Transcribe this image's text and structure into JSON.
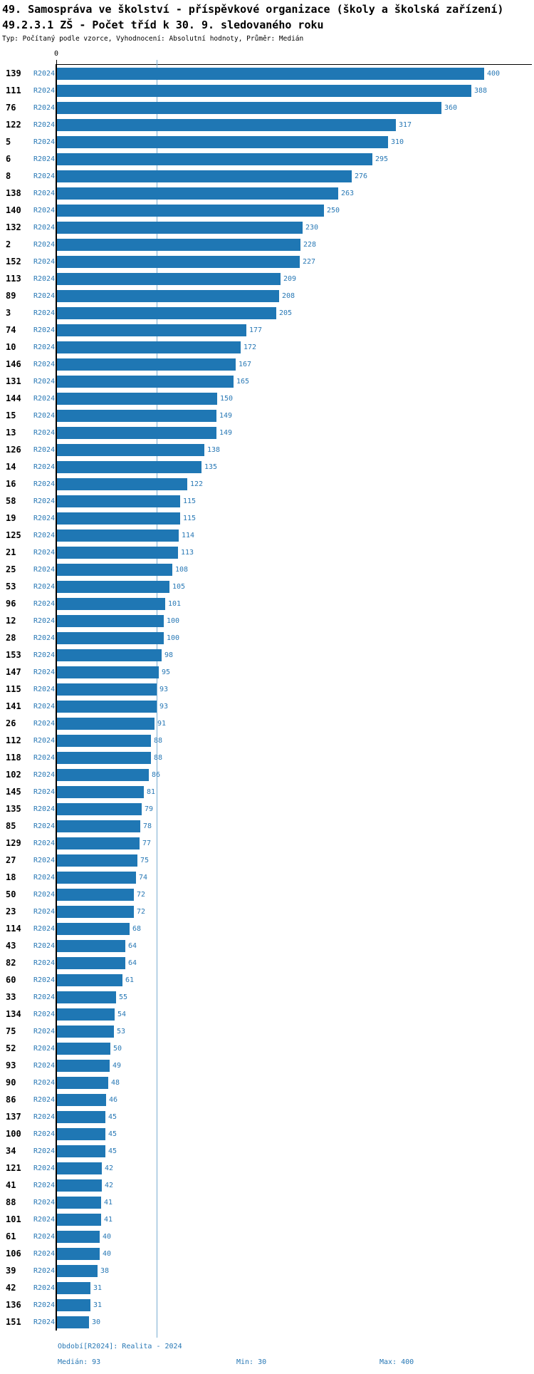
{
  "header": {
    "title_line1": "49. Samospráva ve školství - příspěvkové organizace (školy a školská zařízení)",
    "title_line2": "49.2.3.1 ZŠ - Počet tříd k 30. 9. sledovaného roku",
    "subtitle": "Typ: Počítaný podle vzorce, Vyhodnocení: Absolutní hodnoty, Průměr: Medián"
  },
  "chart_data": {
    "type": "bar",
    "orientation": "horizontal",
    "title": "49.2.3.1 ZŠ - Počet tříd k 30. 9. sledovaného roku",
    "series_label": "R2024",
    "x_axis": {
      "origin_label": "0",
      "min": 0,
      "max_value": 400,
      "gridlines": false
    },
    "median_line_value": 93,
    "bar_color": "#1f77b4",
    "label_color": "#2878b5",
    "categories": [
      "139",
      "111",
      "76",
      "122",
      "5",
      "6",
      "8",
      "138",
      "140",
      "132",
      "2",
      "152",
      "113",
      "89",
      "3",
      "74",
      "10",
      "146",
      "131",
      "144",
      "15",
      "13",
      "126",
      "14",
      "16",
      "58",
      "19",
      "125",
      "21",
      "25",
      "53",
      "96",
      "12",
      "28",
      "153",
      "147",
      "115",
      "141",
      "26",
      "112",
      "118",
      "102",
      "145",
      "135",
      "85",
      "129",
      "27",
      "18",
      "50",
      "23",
      "114",
      "43",
      "82",
      "60",
      "33",
      "134",
      "75",
      "52",
      "93",
      "90",
      "86",
      "137",
      "100",
      "34",
      "121",
      "41",
      "88",
      "101",
      "61",
      "106",
      "39",
      "42",
      "136",
      "151"
    ],
    "values": [
      400,
      388,
      360,
      317,
      310,
      295,
      276,
      263,
      250,
      230,
      228,
      227,
      209,
      208,
      205,
      177,
      172,
      167,
      165,
      150,
      149,
      149,
      138,
      135,
      122,
      115,
      115,
      114,
      113,
      108,
      105,
      101,
      100,
      100,
      98,
      95,
      93,
      93,
      91,
      88,
      88,
      86,
      81,
      79,
      78,
      77,
      75,
      74,
      72,
      72,
      68,
      64,
      64,
      61,
      55,
      54,
      53,
      50,
      49,
      48,
      46,
      45,
      45,
      45,
      42,
      42,
      41,
      41,
      40,
      40,
      38,
      31,
      31,
      30
    ]
  },
  "footer": {
    "period": "Období[R2024]: Realita - 2024",
    "median": "Medián: 93",
    "min": "Min: 30",
    "max": "Max: 400"
  }
}
